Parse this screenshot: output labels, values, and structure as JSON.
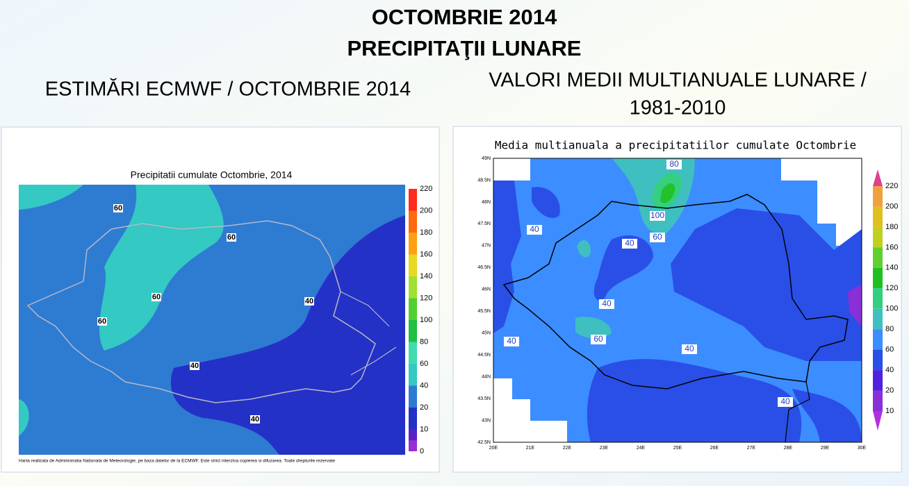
{
  "header": {
    "title": "OCTOMBRIE 2014",
    "subtitle": "PRECIPITAŢII LUNARE"
  },
  "left_panel": {
    "heading": "ESTIMĂRI ECMWF / OCTOMBRIE 2014",
    "map_title": "Precipitatii cumulate Octombrie, 2014",
    "colorbar_labels": [
      "220",
      "200",
      "180",
      "160",
      "140",
      "120",
      "100",
      "80",
      "60",
      "40",
      "20",
      "10",
      "0"
    ],
    "contour_labels": [
      "60",
      "60",
      "60",
      "60",
      "40",
      "40",
      "40"
    ],
    "footnote": "Harta realizata de Administratia Nationala de Meteorologie, pe baza datelor de la ECMWF. Este strict interzisa copierea si difuzarea. Toate drepturile rezervate"
  },
  "right_panel": {
    "heading_line1": "VALORI MEDII MULTIANUALE LUNARE /",
    "heading_line2": "1981-2010",
    "map_title": "Media multianuala a precipitatiilor cumulate Octombrie",
    "colorbar_labels": [
      "220",
      "200",
      "180",
      "160",
      "140",
      "120",
      "100",
      "80",
      "60",
      "40",
      "20",
      "10"
    ],
    "lat_labels": [
      "49N",
      "48.5N",
      "48N",
      "47.5N",
      "47N",
      "46.5N",
      "46N",
      "45.5N",
      "45N",
      "44.5N",
      "44N",
      "43.5N",
      "43N",
      "42.5N"
    ],
    "lon_labels": [
      "20E",
      "21E",
      "22E",
      "23E",
      "24E",
      "25E",
      "26E",
      "27E",
      "28E",
      "29E",
      "30E"
    ],
    "contour_labels": [
      "80",
      "100",
      "60",
      "40",
      "40",
      "40",
      "60",
      "40",
      "40",
      "40"
    ]
  }
}
